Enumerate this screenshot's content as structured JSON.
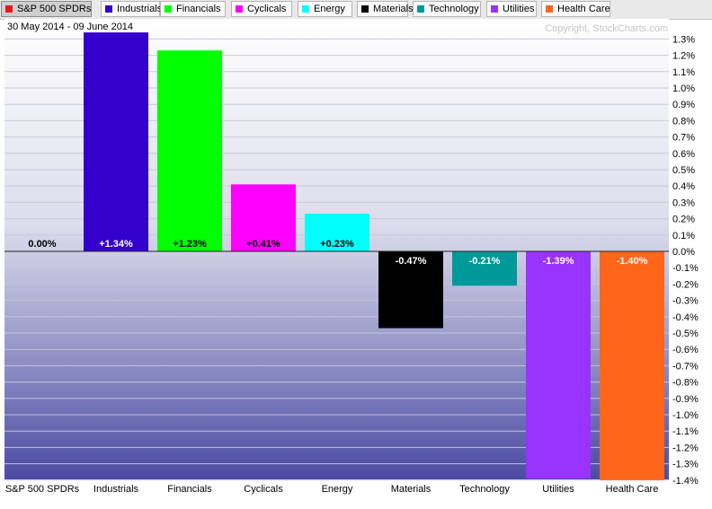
{
  "legend": [
    {
      "label": "S&P 500 SPDRs",
      "color": "#e41a1a",
      "active": true
    },
    {
      "label": "Industrials",
      "color": "#3300cc"
    },
    {
      "label": "Financials",
      "color": "#00ff00"
    },
    {
      "label": "Cyclicals",
      "color": "#ff00ff"
    },
    {
      "label": "Energy",
      "color": "#00ffff"
    },
    {
      "label": "Materials",
      "color": "#000000"
    },
    {
      "label": "Technology",
      "color": "#009999"
    },
    {
      "label": "Utilities",
      "color": "#9933ff"
    },
    {
      "label": "Health Care",
      "color": "#ff6619"
    }
  ],
  "date_range": "30 May 2014 - 09 June 2014",
  "copyright": "Copyright, StockCharts.com",
  "chart_data": {
    "type": "bar",
    "categories": [
      "S&P 500 SPDRs",
      "Industrials",
      "Financials",
      "Cyclicals",
      "Energy",
      "Materials",
      "Technology",
      "Utilities",
      "Health Care"
    ],
    "values": [
      0.0,
      1.34,
      1.23,
      0.41,
      0.23,
      -0.47,
      -0.21,
      -1.39,
      -1.4
    ],
    "value_labels": [
      "0.00%",
      "+1.34%",
      "+1.23%",
      "+0.41%",
      "+0.23%",
      "-0.47%",
      "-0.21%",
      "-1.39%",
      "-1.40%"
    ],
    "colors": [
      "#e41a1a",
      "#3300cc",
      "#00ff00",
      "#ff00ff",
      "#00ffff",
      "#000000",
      "#009999",
      "#9933ff",
      "#ff6619"
    ],
    "value_label_colors": [
      "#000000",
      "#ffffff",
      "#000000",
      "#000000",
      "#000000",
      "#ffffff",
      "#ffffff",
      "#ffffff",
      "#ffffff"
    ],
    "y_ticks": [
      1.3,
      1.2,
      1.1,
      1.0,
      0.9,
      0.8,
      0.7,
      0.6,
      0.5,
      0.4,
      0.3,
      0.2,
      0.1,
      0.0,
      -0.1,
      -0.2,
      -0.3,
      -0.4,
      -0.5,
      -0.6,
      -0.7,
      -0.8,
      -0.9,
      -1.0,
      -1.1,
      -1.2,
      -1.3,
      -1.4
    ],
    "y_tick_labels": [
      "1.3%",
      "1.2%",
      "1.1%",
      "1.0%",
      "0.9%",
      "0.8%",
      "0.7%",
      "0.6%",
      "0.5%",
      "0.4%",
      "0.3%",
      "0.2%",
      "0.1%",
      "0.0%",
      "-0.1%",
      "-0.2%",
      "-0.3%",
      "-0.4%",
      "-0.5%",
      "-0.6%",
      "-0.7%",
      "-0.8%",
      "-0.9%",
      "-1.0%",
      "-1.1%",
      "-1.2%",
      "-1.3%",
      "-1.4%"
    ],
    "ylim": [
      -1.4,
      1.34
    ],
    "axis_position": "right",
    "grid": true,
    "legend_placement": "top"
  }
}
